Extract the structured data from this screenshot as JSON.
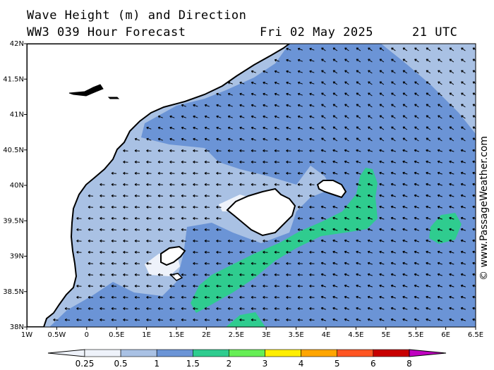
{
  "header": {
    "title_line1": "Wave Height (m) and Direction",
    "title_line2": "WW3 039 Hour Forecast",
    "date": "Fri 02 May 2025",
    "time": "21 UTC"
  },
  "credit": "© www.PassageWeather.com",
  "axes": {
    "lat_labels": [
      "42N",
      "41.5N",
      "41N",
      "40.5N",
      "40N",
      "39.5N",
      "39N",
      "38.5N",
      "38N"
    ],
    "lon_labels": [
      "1W",
      "0.5W",
      "0",
      "0.5E",
      "1E",
      "1.5E",
      "2E",
      "2.5E",
      "3E",
      "3.5E",
      "4E",
      "4.5E",
      "5E",
      "5.5E",
      "6E",
      "6.5E"
    ]
  },
  "legend": {
    "labels": [
      "0.25",
      "0.5",
      "1",
      "1.5",
      "2",
      "3",
      "4",
      "5",
      "6",
      "8"
    ],
    "colors": [
      "#eef2fa",
      "#a9c1e4",
      "#6b94d6",
      "#2fcc8f",
      "#66ee55",
      "#ffee00",
      "#ffa500",
      "#ff5522",
      "#c80000",
      "#c000c0"
    ]
  },
  "colors": {
    "land": "#ffffff",
    "sea_low": "#eef2fa",
    "sea_half": "#a9c1e4",
    "sea_one": "#6b94d6",
    "sea_onefive": "#2fcc8f"
  },
  "arrow_direction": "from east-southeast (arrows pointing west to northwest)"
}
